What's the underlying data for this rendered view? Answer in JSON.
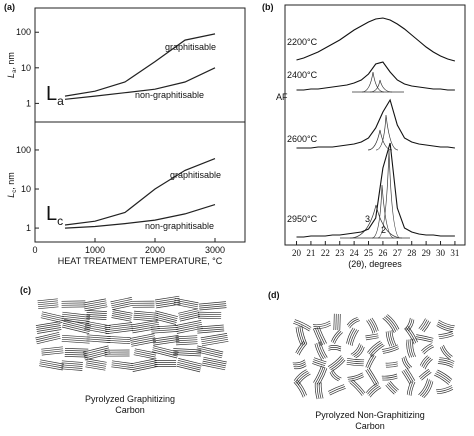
{
  "chart_data": [
    {
      "type": "line",
      "panel_label": "(a)",
      "log_y": true,
      "y_label": {
        "main": "L",
        "sub": "a",
        "unit": ", nm"
      },
      "symbol": {
        "main": "L",
        "sub": "a"
      },
      "x": [
        500,
        1000,
        1500,
        2000,
        2500,
        3000
      ],
      "xlim": [
        0,
        3500
      ],
      "ylim": [
        0.3,
        480
      ],
      "yticks": [
        1,
        10,
        100
      ],
      "series": [
        {
          "name": "graphitisable",
          "color": "#222222",
          "values": [
            1.6,
            2.2,
            4,
            15,
            60,
            90
          ]
        },
        {
          "name": "non-graphitisable",
          "color": "#222222",
          "values": [
            1.3,
            1.6,
            2,
            2.5,
            4,
            10
          ]
        }
      ]
    },
    {
      "type": "line",
      "log_y": true,
      "y_label": {
        "main": "L",
        "sub": "c",
        "unit": ", nm"
      },
      "symbol": {
        "main": "L",
        "sub": "c"
      },
      "x_label": "HEAT TREATMENT TEMPERATURE, °C",
      "x": [
        500,
        1000,
        1500,
        2000,
        2500,
        3000
      ],
      "xlim": [
        0,
        3500
      ],
      "xticks": [
        0,
        1000,
        2000,
        3000
      ],
      "ylim": [
        0.44,
        520
      ],
      "yticks": [
        1,
        10,
        100
      ],
      "series": [
        {
          "name": "graphitisable",
          "color": "#222222",
          "values": [
            1.2,
            1.5,
            2.5,
            10,
            30,
            60
          ]
        },
        {
          "name": "non-graphitisable",
          "color": "#222222",
          "values": [
            1,
            1.1,
            1.3,
            1.6,
            2.3,
            4
          ]
        }
      ]
    },
    {
      "type": "profiles",
      "panel_label": "(b)",
      "x_label": "(2θ),   degrees",
      "annotations": [
        "AF",
        "3",
        "2"
      ],
      "x": [
        20,
        20.5,
        21,
        21.5,
        22,
        22.5,
        23,
        23.5,
        24,
        24.5,
        25,
        25.5,
        26,
        26.5,
        27,
        27.5,
        28,
        28.5,
        29,
        29.5,
        30,
        30.5,
        31
      ],
      "xlim": [
        19.2,
        31.7
      ],
      "xticks": [
        20,
        21,
        22,
        23,
        24,
        25,
        26,
        27,
        28,
        29,
        30,
        31
      ],
      "series": [
        {
          "name": "2200°C",
          "color": "#111111",
          "values": [
            8,
            10,
            13,
            16,
            20,
            24,
            28,
            33,
            38,
            42,
            46,
            49,
            50,
            48,
            44,
            39,
            33,
            27,
            21,
            16,
            12,
            9,
            7
          ]
        },
        {
          "name": "2400°C",
          "color": "#111111",
          "values": [
            2,
            2,
            3,
            3,
            4,
            5,
            6,
            7,
            9,
            12,
            18,
            28,
            30,
            20,
            12,
            8,
            6,
            5,
            4,
            3,
            3,
            2,
            2
          ]
        },
        {
          "name": "2600°C",
          "color": "#111111",
          "values": [
            2,
            2,
            2,
            3,
            3,
            3,
            4,
            5,
            6,
            8,
            12,
            22,
            38,
            50,
            25,
            12,
            8,
            6,
            5,
            4,
            3,
            3,
            2
          ]
        },
        {
          "name": "2950°C",
          "color": "#111111",
          "values": [
            1,
            1,
            2,
            2,
            2,
            3,
            3,
            4,
            5,
            6,
            9,
            20,
            70,
            95,
            30,
            10,
            6,
            4,
            3,
            3,
            2,
            2,
            2
          ]
        }
      ]
    }
  ],
  "figures": [
    {
      "label": "(c)",
      "caption_lines": [
        "Pyrolyzed Graphitizing",
        "Carbon"
      ]
    },
    {
      "label": "(d)",
      "caption_lines": [
        "Pyrolyzed Non-Graphitizing",
        "Carbon"
      ]
    }
  ]
}
